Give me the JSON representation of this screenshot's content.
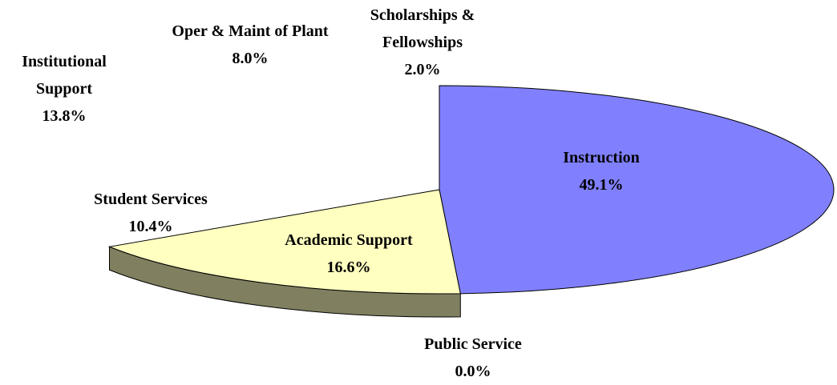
{
  "chart_data": {
    "type": "pie",
    "categories": [
      "Instruction",
      "Public Service",
      "Academic Support",
      "Student Services",
      "Institutional Support",
      "Oper & Maint of Plant",
      "Scholarships & Fellowships"
    ],
    "values": [
      49.1,
      0.0,
      16.6,
      10.4,
      13.8,
      8.0,
      2.0
    ],
    "value_labels": [
      "49.1%",
      "0.0%",
      "16.6%",
      "10.4%",
      "13.8%",
      "8.0%",
      "2.0%"
    ],
    "colors": [
      "#8080ff",
      "none",
      "#ffffc0",
      "none",
      "none",
      "none",
      "none"
    ],
    "side_colors": [
      null,
      null,
      "#808060",
      null,
      null,
      null,
      null
    ]
  }
}
